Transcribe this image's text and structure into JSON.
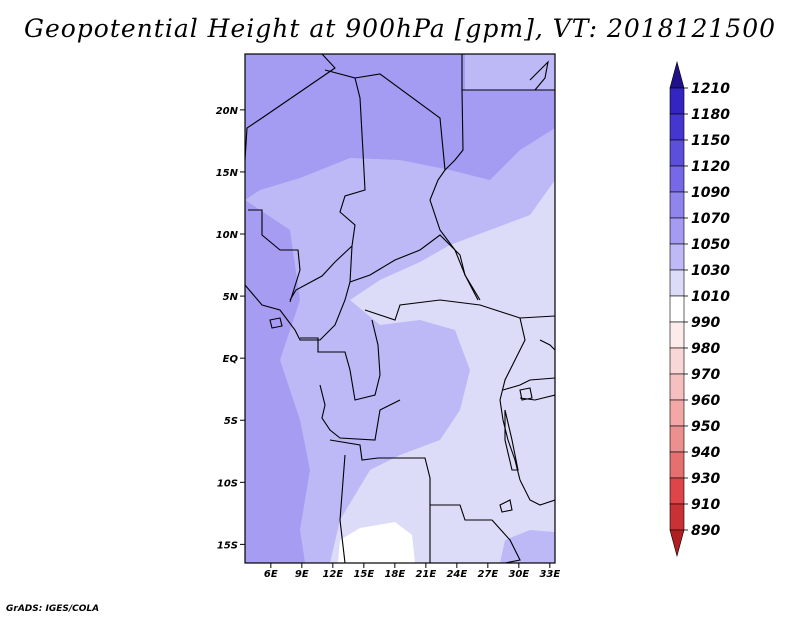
{
  "title": "Geopotential Height at 900hPa [gpm], VT: 2018121500",
  "footer": "GrADS: IGES/COLA",
  "map": {
    "x_ticks": [
      "6E",
      "9E",
      "12E",
      "15E",
      "18E",
      "21E",
      "24E",
      "27E",
      "30E",
      "33E"
    ],
    "y_ticks": [
      "20N",
      "15N",
      "10N",
      "5N",
      "EQ",
      "5S",
      "10S",
      "15S"
    ]
  },
  "colorbar": {
    "levels": [
      "890",
      "910",
      "930",
      "940",
      "950",
      "960",
      "970",
      "980",
      "990",
      "1010",
      "1030",
      "1050",
      "1070",
      "1090",
      "1120",
      "1150",
      "1180",
      "1210"
    ],
    "colors": [
      "#b01e22",
      "#c83234",
      "#de4548",
      "#e57070",
      "#ec8f8f",
      "#f3a7a7",
      "#f7c0c0",
      "#fad7d7",
      "#fdebeb",
      "#ffffff",
      "#dcdcf8",
      "#bfbaf6",
      "#a69bf2",
      "#8f85ed",
      "#7668e6",
      "#5c4fdc",
      "#4536cf",
      "#3424c2",
      "#20108a"
    ]
  }
}
